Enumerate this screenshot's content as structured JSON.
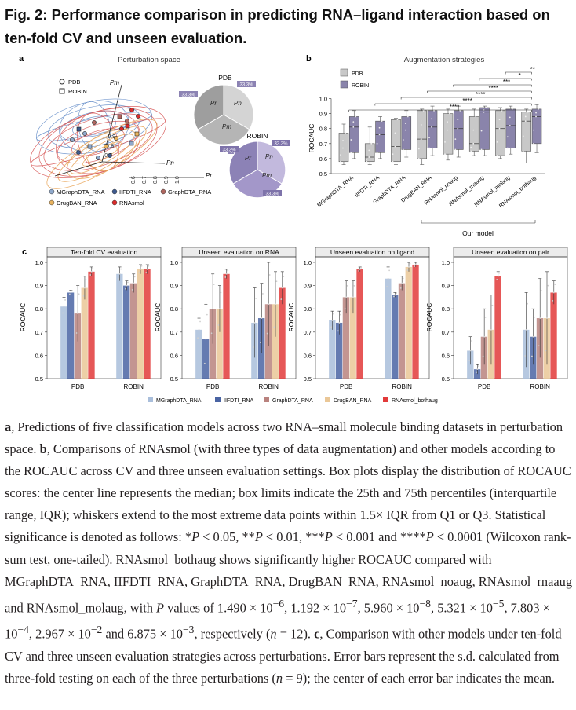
{
  "title": "Fig. 2: Performance comparison in predicting RNA–ligand interaction based on ten-fold CV and unseen evaluation.",
  "panel_a": {
    "letter": "a",
    "title": "Perturbation space",
    "legend_shape": {
      "circle": "PDB",
      "square": "ROBIN"
    },
    "axis_m": "Pm",
    "axis_n": "Pn",
    "axis_r": "Pr",
    "ticks": [
      "0.6",
      "0.7",
      "0.8",
      "0.9",
      "1.0"
    ],
    "model_legend": [
      {
        "label": "MGraphDTA_RNA",
        "color": "#8fa9cc"
      },
      {
        "label": "IIFDTI_RNA",
        "color": "#3e5a8e"
      },
      {
        "label": "GraphDTA_RNA",
        "color": "#b0665f"
      },
      {
        "label": "DrugBAN_RNA",
        "color": "#e9b35e"
      },
      {
        "label": "RNAsmol",
        "color": "#d92b2b"
      }
    ],
    "pie_pdb": {
      "title": "PDB",
      "slices": [
        {
          "label": "Pn",
          "pct": "33.3%"
        },
        {
          "label": "Pm",
          "pct": "33.3%"
        },
        {
          "label": "Pr",
          "pct": "33.3%"
        }
      ]
    },
    "pie_robin": {
      "title": "ROBIN",
      "slices": [
        {
          "label": "Pn",
          "pct": "33.3%"
        },
        {
          "label": "Pm",
          "pct": "33.3%"
        },
        {
          "label": "Pr",
          "pct": "33.3%"
        }
      ]
    },
    "colors": {
      "pdb_pie": "#c9c9c9",
      "robin_pie": "#a89cc8",
      "pdb_ellipse": "#5b86c5",
      "robin_ellipse": "#d44a4a",
      "orange_ellipse": "#e9a65a"
    }
  },
  "panel_b": {
    "letter": "b",
    "title": "Augmentation strategies",
    "legend": [
      {
        "label": "PDB",
        "color": "#c8c8c8"
      },
      {
        "label": "ROBIN",
        "color": "#8a84ab"
      }
    ],
    "ylabel": "ROCAUC",
    "yticks": [
      "0.5",
      "0.6",
      "0.7",
      "0.8",
      "0.9",
      "1.0"
    ],
    "categories": [
      "MGraphDTA_RNA",
      "IIFDTI_RNA",
      "GraphDTA_RNA",
      "DrugBAN_RNA",
      "RNAsmol_noaug",
      "RNAsmol_rnaaug",
      "RNAsmol_molaug",
      "RNAsmol_bothaug"
    ],
    "group_label": "Our model",
    "significance": [
      "**",
      "*",
      "***",
      "****",
      "****",
      "****",
      "****"
    ]
  },
  "panel_c": {
    "letter": "c",
    "ylabel": "ROCAUC",
    "yticks": [
      "0.5",
      "0.6",
      "0.7",
      "0.8",
      "0.9",
      "1.0"
    ],
    "xcategories": [
      "PDB",
      "ROBIN"
    ],
    "legend": [
      {
        "label": "MGraphDTA_RNA",
        "color": "#a9bedb"
      },
      {
        "label": "IIFDTI_RNA",
        "color": "#4a64a3"
      },
      {
        "label": "GraphDTA_RNA",
        "color": "#b9827e"
      },
      {
        "label": "DrugBAN_RNA",
        "color": "#eac797"
      },
      {
        "label": "RNAsmol_bothaug",
        "color": "#e23a3a"
      }
    ]
  },
  "chart_data": [
    {
      "type": "bar",
      "title": "Ten-fold CV evaluation",
      "categories": [
        "PDB",
        "ROBIN"
      ],
      "ylabel": "ROCAUC",
      "ylim": [
        0.5,
        1.0
      ],
      "series": [
        {
          "name": "MGraphDTA_RNA",
          "values": [
            0.81,
            0.95
          ],
          "err": [
            0.04,
            0.03
          ]
        },
        {
          "name": "IIFDTI_RNA",
          "values": [
            0.87,
            0.9
          ],
          "err": [
            0.01,
            0.02
          ]
        },
        {
          "name": "GraphDTA_RNA",
          "values": [
            0.78,
            0.91
          ],
          "err": [
            0.12,
            0.04
          ]
        },
        {
          "name": "DrugBAN_RNA",
          "values": [
            0.89,
            0.97
          ],
          "err": [
            0.05,
            0.02
          ]
        },
        {
          "name": "RNAsmol_bothaug",
          "values": [
            0.96,
            0.97
          ],
          "err": [
            0.02,
            0.02
          ]
        }
      ]
    },
    {
      "type": "bar",
      "title": "Unseen evaluation on RNA",
      "categories": [
        "PDB",
        "ROBIN"
      ],
      "ylabel": "ROCAUC",
      "ylim": [
        0.5,
        1.0
      ],
      "series": [
        {
          "name": "MGraphDTA_RNA",
          "values": [
            0.71,
            0.74
          ],
          "err": [
            0.05,
            0.15
          ]
        },
        {
          "name": "IIFDTI_RNA",
          "values": [
            0.67,
            0.76
          ],
          "err": [
            0.15,
            0.15
          ]
        },
        {
          "name": "GraphDTA_RNA",
          "values": [
            0.8,
            0.82
          ],
          "err": [
            0.15,
            0.18
          ]
        },
        {
          "name": "DrugBAN_RNA",
          "values": [
            0.8,
            0.82
          ],
          "err": [
            0.1,
            0.14
          ]
        },
        {
          "name": "RNAsmol_bothaug",
          "values": [
            0.95,
            0.89
          ],
          "err": [
            0.02,
            0.07
          ]
        }
      ]
    },
    {
      "type": "bar",
      "title": "Unseen evaluation on ligand",
      "categories": [
        "PDB",
        "ROBIN"
      ],
      "ylabel": "ROCAUC",
      "ylim": [
        0.5,
        1.0
      ],
      "series": [
        {
          "name": "MGraphDTA_RNA",
          "values": [
            0.75,
            0.93
          ],
          "err": [
            0.04,
            0.05
          ]
        },
        {
          "name": "IIFDTI_RNA",
          "values": [
            0.74,
            0.86
          ],
          "err": [
            0.05,
            0.01
          ]
        },
        {
          "name": "GraphDTA_RNA",
          "values": [
            0.85,
            0.91
          ],
          "err": [
            0.07,
            0.03
          ]
        },
        {
          "name": "DrugBAN_RNA",
          "values": [
            0.85,
            0.98
          ],
          "err": [
            0.07,
            0.02
          ]
        },
        {
          "name": "RNAsmol_bothaug",
          "values": [
            0.97,
            0.99
          ],
          "err": [
            0.01,
            0.01
          ]
        }
      ]
    },
    {
      "type": "bar",
      "title": "Unseen evaluation on pair",
      "categories": [
        "PDB",
        "ROBIN"
      ],
      "ylabel": "ROCAUC",
      "ylim": [
        0.5,
        1.0
      ],
      "series": [
        {
          "name": "MGraphDTA_RNA",
          "values": [
            0.62,
            0.71
          ],
          "err": [
            0.06,
            0.16
          ]
        },
        {
          "name": "IIFDTI_RNA",
          "values": [
            0.54,
            0.68
          ],
          "err": [
            0.02,
            0.12
          ]
        },
        {
          "name": "GraphDTA_RNA",
          "values": [
            0.68,
            0.76
          ],
          "err": [
            0.12,
            0.17
          ]
        },
        {
          "name": "DrugBAN_RNA",
          "values": [
            0.71,
            0.76
          ],
          "err": [
            0.15,
            0.2
          ]
        },
        {
          "name": "RNAsmol_bothaug",
          "values": [
            0.94,
            0.87
          ],
          "err": [
            0.02,
            0.05
          ]
        }
      ]
    },
    {
      "type": "box",
      "title": "Augmentation strategies",
      "categories": [
        "MGraphDTA_RNA",
        "IIFDTI_RNA",
        "GraphDTA_RNA",
        "DrugBAN_RNA",
        "RNAsmol_noaug",
        "RNAsmol_rnaaug",
        "RNAsmol_molaug",
        "RNAsmol_bothaug"
      ],
      "ylabel": "ROCAUC",
      "ylim": [
        0.5,
        1.05
      ],
      "series": [
        {
          "name": "PDB",
          "boxes": [
            {
              "min": 0.56,
              "q1": 0.58,
              "median": 0.67,
              "q3": 0.77,
              "max": 0.83
            },
            {
              "min": 0.56,
              "q1": 0.58,
              "median": 0.61,
              "q3": 0.7,
              "max": 0.81
            },
            {
              "min": 0.56,
              "q1": 0.58,
              "median": 0.68,
              "q3": 0.86,
              "max": 0.87
            },
            {
              "min": 0.56,
              "q1": 0.6,
              "median": 0.73,
              "q3": 0.92,
              "max": 0.93
            },
            {
              "min": 0.59,
              "q1": 0.63,
              "median": 0.79,
              "q3": 0.9,
              "max": 0.93
            },
            {
              "min": 0.62,
              "q1": 0.65,
              "median": 0.7,
              "q3": 0.88,
              "max": 0.93
            },
            {
              "min": 0.6,
              "q1": 0.62,
              "median": 0.8,
              "q3": 0.92,
              "max": 0.94
            },
            {
              "min": 0.57,
              "q1": 0.65,
              "median": 0.85,
              "q3": 0.91,
              "max": 0.93
            }
          ]
        },
        {
          "name": "ROBIN",
          "boxes": [
            {
              "min": 0.6,
              "q1": 0.64,
              "median": 0.81,
              "q3": 0.88,
              "max": 0.92
            },
            {
              "min": 0.6,
              "q1": 0.64,
              "median": 0.76,
              "q3": 0.85,
              "max": 0.88
            },
            {
              "min": 0.61,
              "q1": 0.66,
              "median": 0.79,
              "q3": 0.88,
              "max": 0.92
            },
            {
              "min": 0.62,
              "q1": 0.67,
              "median": 0.81,
              "q3": 0.92,
              "max": 0.95
            },
            {
              "min": 0.61,
              "q1": 0.66,
              "median": 0.8,
              "q3": 0.92,
              "max": 0.95
            },
            {
              "min": 0.62,
              "q1": 0.66,
              "median": 0.91,
              "q3": 0.94,
              "max": 0.95
            },
            {
              "min": 0.63,
              "q1": 0.67,
              "median": 0.82,
              "q3": 0.93,
              "max": 0.95
            },
            {
              "min": 0.64,
              "q1": 0.7,
              "median": 0.88,
              "q3": 0.93,
              "max": 0.96
            }
          ]
        }
      ]
    }
  ],
  "caption": {
    "a_letter": "a",
    "a_text": ", Predictions of five classification models across two RNA–small molecule binding datasets in perturbation space. ",
    "b_letter": "b",
    "b_text": ", Comparisons of RNAsmol (with three types of data augmentation) and other models according to the ROCAUC across CV and three unseen evaluation settings. Box plots display the distribution of ROCAUC scores: the center line represents the median; box limits indicate the 25th and 75th percentiles (interquartile range, IQR); whiskers extend to the most extreme data points within 1.5× IQR from Q1 or Q3. Statistical significance is denoted as follows: *",
    "p": "P",
    "t1": " < 0.05, **",
    "t2": " < 0.01, ***",
    "t3": " < 0.001 and ****",
    "t4": " < 0.0001 (Wilcoxon rank-sum test, one-tailed). RNAsmol_bothaug shows significantly higher ROCAUC compared with MGraphDTA_RNA, IIFDTI_RNA, GraphDTA_RNA, DrugBAN_RNA, RNAsmol_noaug, RNAsmol_rnaaug and RNAsmol_molaug, with ",
    "t5": " values of 1.490 × 10",
    "e1": "−6",
    "t6": ", 1.192 × 10",
    "e2": "−7",
    "t7": ", 5.960 × 10",
    "e3": "−8",
    "t8": ", 5.321 × 10",
    "e4": "−5",
    "t9": ", 7.803 × 10",
    "e5": "−4",
    "t10": ", 2.967 × 10",
    "e6": "−2",
    "t11": " and 6.875 × 10",
    "e7": "−3",
    "t12": ", respectively (",
    "n": "n",
    "t13": " = 12). ",
    "c_letter": "c",
    "c_text": ", Comparison with other models under ten-fold CV and three unseen evaluation strategies across perturbations. Error bars represent the s.d. calculated from three-fold testing on each of the three perturbations (",
    "t14": " = 9); the center of each error bar indicates the mean."
  }
}
